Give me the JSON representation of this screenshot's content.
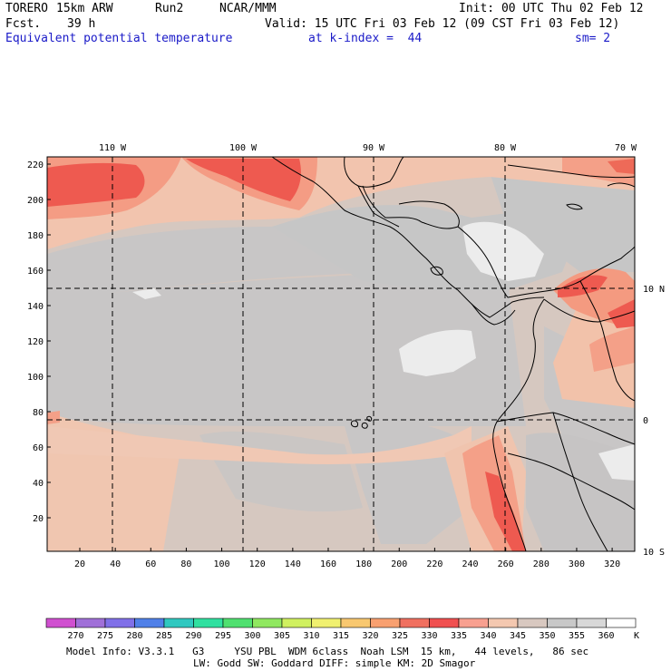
{
  "header": {
    "model": "TORERO",
    "resolution": "15km ARW",
    "run": "Run2",
    "org": "NCAR/MMM",
    "init": "Init: 00 UTC Thu 02 Feb 12",
    "fcst_label": "Fcst.",
    "fcst_value": "39 h",
    "valid": "Valid: 15 UTC Fri 03 Feb 12 (09 CST Fri 03 Feb 12)",
    "field": "Equivalent potential temperature",
    "k_index": "at k-index =  44",
    "smoothing": "sm= 2"
  },
  "map": {
    "top_lon_labels": [
      "110 W",
      "100 W",
      "90 W",
      "80 W",
      "70 W"
    ],
    "right_lat_labels": [
      "10 N",
      "0",
      "10 S"
    ],
    "y_grid_labels": [
      "220",
      "200",
      "180",
      "160",
      "140",
      "120",
      "100",
      "80",
      "60",
      "40",
      "20"
    ],
    "x_grid_labels": [
      "20",
      "40",
      "60",
      "80",
      "100",
      "120",
      "140",
      "160",
      "180",
      "200",
      "220",
      "240",
      "260",
      "280",
      "300",
      "320"
    ]
  },
  "colorbar": {
    "unit": "K",
    "labels": [
      "270",
      "275",
      "280",
      "285",
      "290",
      "295",
      "300",
      "305",
      "310",
      "315",
      "320",
      "325",
      "330",
      "335",
      "340",
      "345",
      "350",
      "355",
      "360"
    ],
    "colors": [
      "#d050d0",
      "#a070d8",
      "#8070e8",
      "#5080e8",
      "#30c8c0",
      "#30e0a0",
      "#50e070",
      "#90e860",
      "#d0f060",
      "#f0f070",
      "#f8c870",
      "#f8a070",
      "#f07060",
      "#f05050",
      "#f8a090",
      "#f4c8b0",
      "#d8c8c0",
      "#c8c8c8",
      "#d8d8d8",
      "#ffffff"
    ]
  },
  "footer": {
    "line1": "Model Info: V3.3.1   G3     YSU PBL  WDM 6class  Noah LSM  15 km,   44 levels,   86 sec",
    "line2": "LW: Godd SW: Goddard DIFF: simple KM: 2D Smagor"
  }
}
